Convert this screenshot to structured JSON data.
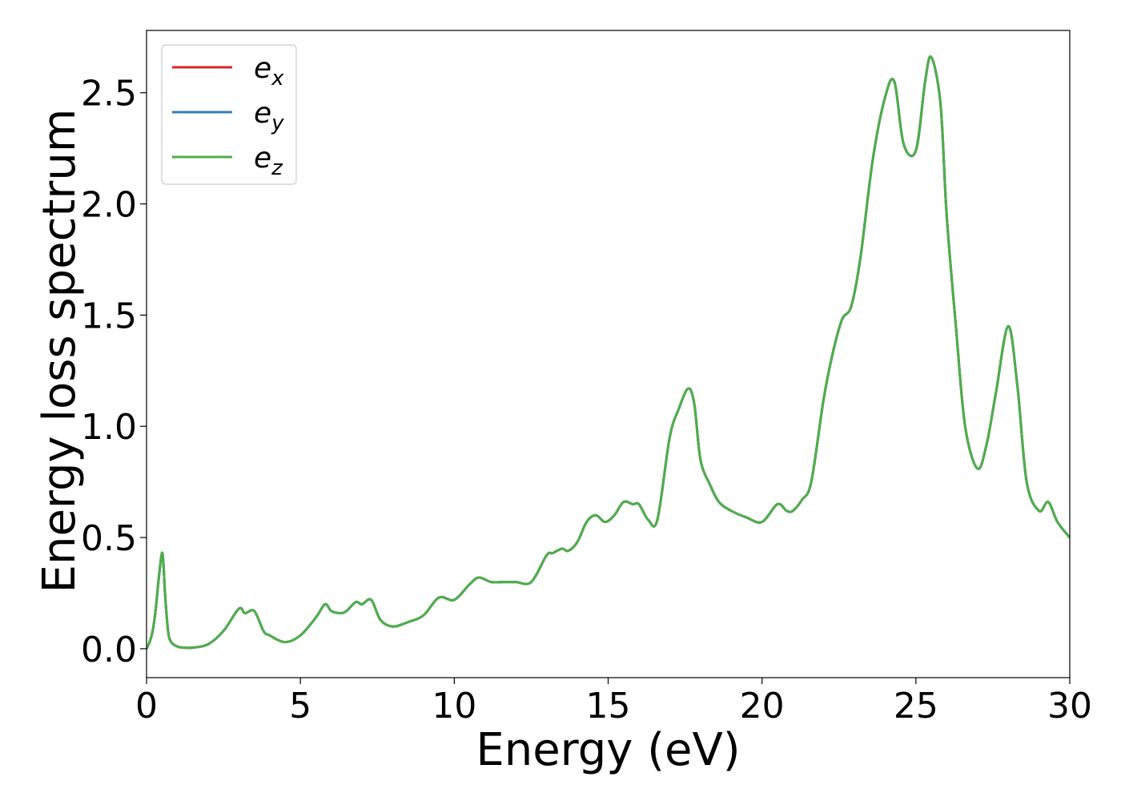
{
  "chart_data": {
    "type": "line",
    "title": "",
    "xlabel": "Energy (eV)",
    "ylabel": "Energy loss spectrum",
    "xlim": [
      0,
      30
    ],
    "ylim": [
      -0.13,
      2.78
    ],
    "xticks": [
      0,
      5,
      10,
      15,
      20,
      25,
      30
    ],
    "xtick_labels": [
      "0",
      "5",
      "10",
      "15",
      "20",
      "25",
      "30"
    ],
    "yticks": [
      0.0,
      0.5,
      1.0,
      1.5,
      2.0,
      2.5
    ],
    "ytick_labels": [
      "0.0",
      "0.5",
      "1.0",
      "1.5",
      "2.0",
      "2.5"
    ],
    "grid": false,
    "legend_position": "top-left",
    "series": [
      {
        "name": "e",
        "subscript": "x",
        "color": "#d62728",
        "x": [
          0,
          0.1,
          0.2,
          0.3,
          0.4,
          0.5,
          0.55,
          0.6,
          0.7,
          0.8,
          1.0,
          1.2,
          1.5,
          2.0,
          2.5,
          3.0,
          3.2,
          3.5,
          3.8,
          4.0,
          4.5,
          5.0,
          5.5,
          5.8,
          6.0,
          6.3,
          6.5,
          6.8,
          7.0,
          7.3,
          7.6,
          8.0,
          8.5,
          9.0,
          9.5,
          10.0,
          10.5,
          10.8,
          11.2,
          11.6,
          12.0,
          12.5,
          13.0,
          13.2,
          13.5,
          13.7,
          14.0,
          14.3,
          14.6,
          14.9,
          15.2,
          15.5,
          15.8,
          16.0,
          16.3,
          16.6,
          17.0,
          17.3,
          17.6,
          17.8,
          18.0,
          18.3,
          18.6,
          19.0,
          19.5,
          20.0,
          20.5,
          20.8,
          21.0,
          21.3,
          21.6,
          22.0,
          22.3,
          22.6,
          22.9,
          23.2,
          23.6,
          24.0,
          24.3,
          24.6,
          25.0,
          25.3,
          25.5,
          25.8,
          26.0,
          26.3,
          26.6,
          27.0,
          27.3,
          27.6,
          28.0,
          28.3,
          28.6,
          29.0,
          29.3,
          29.6,
          30.0
        ],
        "y": [
          0.0,
          0.03,
          0.08,
          0.18,
          0.32,
          0.43,
          0.38,
          0.25,
          0.08,
          0.03,
          0.01,
          0.005,
          0.005,
          0.02,
          0.08,
          0.18,
          0.16,
          0.17,
          0.08,
          0.06,
          0.03,
          0.06,
          0.14,
          0.2,
          0.17,
          0.16,
          0.17,
          0.21,
          0.2,
          0.22,
          0.13,
          0.1,
          0.12,
          0.15,
          0.23,
          0.22,
          0.29,
          0.32,
          0.3,
          0.3,
          0.3,
          0.3,
          0.42,
          0.43,
          0.45,
          0.44,
          0.48,
          0.57,
          0.6,
          0.57,
          0.6,
          0.66,
          0.65,
          0.65,
          0.58,
          0.58,
          0.95,
          1.08,
          1.17,
          1.1,
          0.85,
          0.74,
          0.66,
          0.62,
          0.59,
          0.57,
          0.65,
          0.62,
          0.62,
          0.67,
          0.75,
          1.12,
          1.33,
          1.48,
          1.54,
          1.76,
          2.2,
          2.48,
          2.55,
          2.27,
          2.24,
          2.55,
          2.66,
          2.45,
          1.95,
          1.45,
          1.0,
          0.81,
          0.92,
          1.15,
          1.45,
          1.18,
          0.75,
          0.62,
          0.66,
          0.57,
          0.5
        ]
      },
      {
        "name": "e",
        "subscript": "y",
        "color": "#377eb8",
        "x": [
          0,
          0.1,
          0.2,
          0.3,
          0.4,
          0.5,
          0.55,
          0.6,
          0.7,
          0.8,
          1.0,
          1.2,
          1.5,
          2.0,
          2.5,
          3.0,
          3.2,
          3.5,
          3.8,
          4.0,
          4.5,
          5.0,
          5.5,
          5.8,
          6.0,
          6.3,
          6.5,
          6.8,
          7.0,
          7.3,
          7.6,
          8.0,
          8.5,
          9.0,
          9.5,
          10.0,
          10.5,
          10.8,
          11.2,
          11.6,
          12.0,
          12.5,
          13.0,
          13.2,
          13.5,
          13.7,
          14.0,
          14.3,
          14.6,
          14.9,
          15.2,
          15.5,
          15.8,
          16.0,
          16.3,
          16.6,
          17.0,
          17.3,
          17.6,
          17.8,
          18.0,
          18.3,
          18.6,
          19.0,
          19.5,
          20.0,
          20.5,
          20.8,
          21.0,
          21.3,
          21.6,
          22.0,
          22.3,
          22.6,
          22.9,
          23.2,
          23.6,
          24.0,
          24.3,
          24.6,
          25.0,
          25.3,
          25.5,
          25.8,
          26.0,
          26.3,
          26.6,
          27.0,
          27.3,
          27.6,
          28.0,
          28.3,
          28.6,
          29.0,
          29.3,
          29.6,
          30.0
        ],
        "y": [
          0.0,
          0.03,
          0.08,
          0.18,
          0.32,
          0.43,
          0.38,
          0.25,
          0.08,
          0.03,
          0.01,
          0.005,
          0.005,
          0.02,
          0.08,
          0.18,
          0.16,
          0.17,
          0.08,
          0.06,
          0.03,
          0.06,
          0.14,
          0.2,
          0.17,
          0.16,
          0.17,
          0.21,
          0.2,
          0.22,
          0.13,
          0.1,
          0.12,
          0.15,
          0.23,
          0.22,
          0.29,
          0.32,
          0.3,
          0.3,
          0.3,
          0.3,
          0.42,
          0.43,
          0.45,
          0.44,
          0.48,
          0.57,
          0.6,
          0.57,
          0.6,
          0.66,
          0.65,
          0.65,
          0.58,
          0.58,
          0.95,
          1.08,
          1.17,
          1.1,
          0.85,
          0.74,
          0.66,
          0.62,
          0.59,
          0.57,
          0.65,
          0.62,
          0.62,
          0.67,
          0.75,
          1.12,
          1.33,
          1.48,
          1.54,
          1.76,
          2.2,
          2.48,
          2.55,
          2.27,
          2.24,
          2.55,
          2.66,
          2.45,
          1.95,
          1.45,
          1.0,
          0.81,
          0.92,
          1.15,
          1.45,
          1.18,
          0.75,
          0.62,
          0.66,
          0.57,
          0.5
        ]
      },
      {
        "name": "e",
        "subscript": "z",
        "color": "#4daf4a",
        "x": [
          0,
          0.1,
          0.2,
          0.3,
          0.4,
          0.5,
          0.55,
          0.6,
          0.7,
          0.8,
          1.0,
          1.2,
          1.5,
          2.0,
          2.5,
          3.0,
          3.2,
          3.5,
          3.8,
          4.0,
          4.5,
          5.0,
          5.5,
          5.8,
          6.0,
          6.3,
          6.5,
          6.8,
          7.0,
          7.3,
          7.6,
          8.0,
          8.5,
          9.0,
          9.5,
          10.0,
          10.5,
          10.8,
          11.2,
          11.6,
          12.0,
          12.5,
          13.0,
          13.2,
          13.5,
          13.7,
          14.0,
          14.3,
          14.6,
          14.9,
          15.2,
          15.5,
          15.8,
          16.0,
          16.3,
          16.6,
          17.0,
          17.3,
          17.6,
          17.8,
          18.0,
          18.3,
          18.6,
          19.0,
          19.5,
          20.0,
          20.5,
          20.8,
          21.0,
          21.3,
          21.6,
          22.0,
          22.3,
          22.6,
          22.9,
          23.2,
          23.6,
          24.0,
          24.3,
          24.6,
          25.0,
          25.3,
          25.5,
          25.8,
          26.0,
          26.3,
          26.6,
          27.0,
          27.3,
          27.6,
          28.0,
          28.3,
          28.6,
          29.0,
          29.3,
          29.6,
          30.0
        ],
        "y": [
          0.0,
          0.03,
          0.08,
          0.18,
          0.32,
          0.43,
          0.38,
          0.25,
          0.08,
          0.03,
          0.01,
          0.005,
          0.005,
          0.02,
          0.08,
          0.18,
          0.16,
          0.17,
          0.08,
          0.06,
          0.03,
          0.06,
          0.14,
          0.2,
          0.17,
          0.16,
          0.17,
          0.21,
          0.2,
          0.22,
          0.13,
          0.1,
          0.12,
          0.15,
          0.23,
          0.22,
          0.29,
          0.32,
          0.3,
          0.3,
          0.3,
          0.3,
          0.42,
          0.43,
          0.45,
          0.44,
          0.48,
          0.57,
          0.6,
          0.57,
          0.6,
          0.66,
          0.65,
          0.65,
          0.58,
          0.58,
          0.95,
          1.08,
          1.17,
          1.1,
          0.85,
          0.74,
          0.66,
          0.62,
          0.59,
          0.57,
          0.65,
          0.62,
          0.62,
          0.67,
          0.75,
          1.12,
          1.33,
          1.48,
          1.54,
          1.76,
          2.2,
          2.48,
          2.55,
          2.27,
          2.24,
          2.55,
          2.66,
          2.45,
          1.95,
          1.45,
          1.0,
          0.81,
          0.92,
          1.15,
          1.45,
          1.18,
          0.75,
          0.62,
          0.66,
          0.57,
          0.5
        ]
      }
    ]
  }
}
